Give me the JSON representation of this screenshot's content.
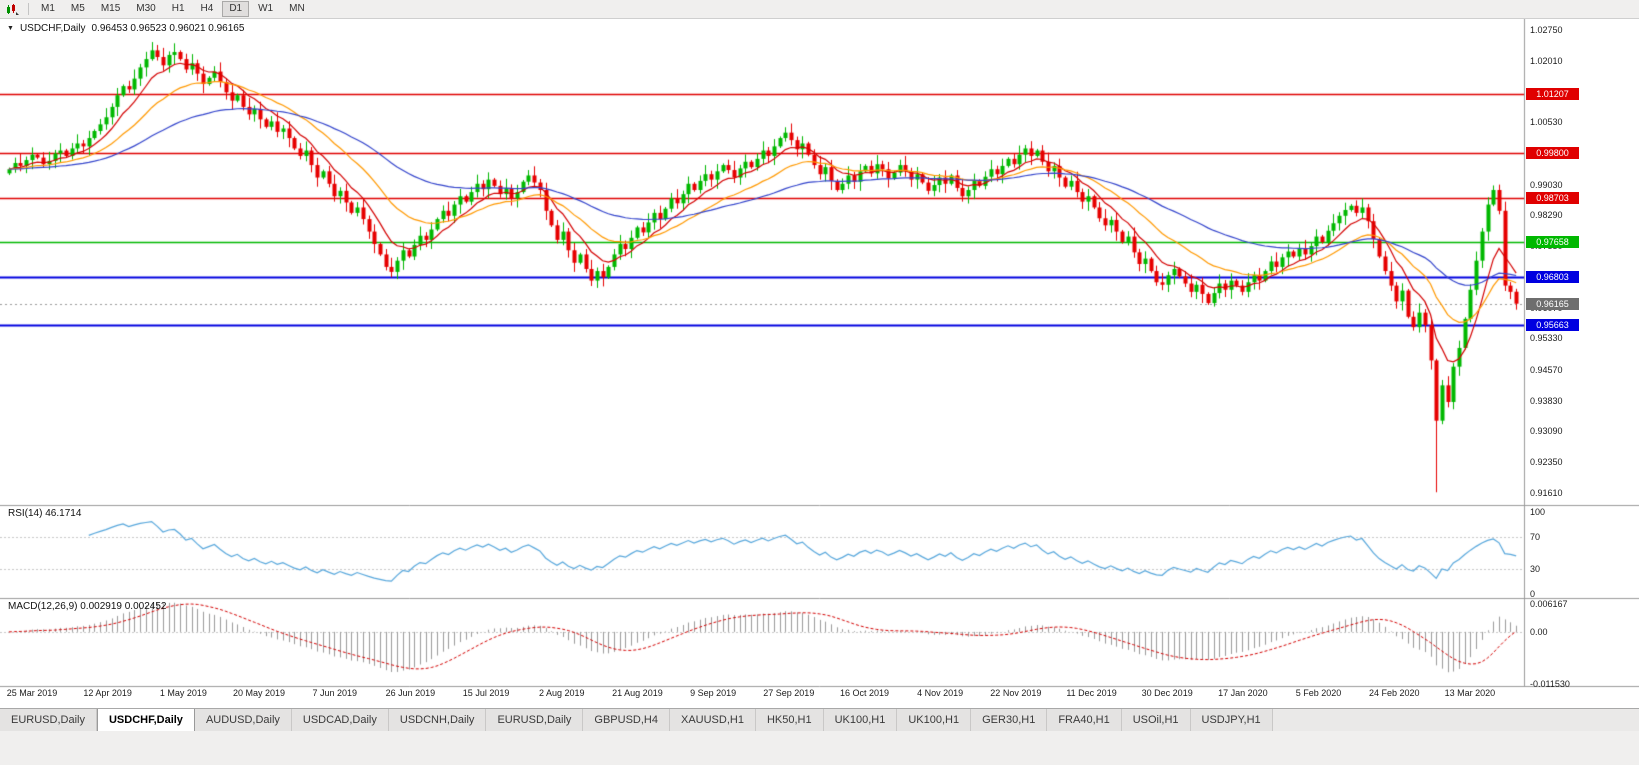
{
  "toolbar": {
    "timeframes": [
      "M1",
      "M5",
      "M15",
      "M30",
      "H1",
      "H4",
      "D1",
      "W1",
      "MN"
    ],
    "active_timeframe": "D1"
  },
  "symbol_header": {
    "collapse_icon": "▼",
    "symbol": "USDCHF,Daily",
    "ohlc": "0.96453 0.96523 0.96021 0.96165"
  },
  "price_axis": {
    "labels": [
      "1.02750",
      "1.02010",
      "1.01270",
      "1.00530",
      "0.99790",
      "0.99030",
      "0.98290",
      "0.97550",
      "0.96810",
      "0.96070",
      "0.95330",
      "0.94570",
      "0.93830",
      "0.93090",
      "0.92350",
      "0.91610"
    ]
  },
  "chart": {
    "levels": [
      {
        "label": "1.01207",
        "value": 1.01207,
        "color": "#e00000",
        "width": 1.5
      },
      {
        "label": "0.99800",
        "value": 0.998,
        "color": "#e00000",
        "width": 1.5
      },
      {
        "label": "0.98703",
        "value": 0.98703,
        "color": "#e00000",
        "width": 1.5
      },
      {
        "label": "0.97658",
        "value": 0.97658,
        "color": "#00b800",
        "width": 1.6
      },
      {
        "label": "0.96803",
        "value": 0.96803,
        "color": "#0000e0",
        "width": 1.8
      },
      {
        "label": "0.95663",
        "value": 0.95663,
        "color": "#0000e0",
        "width": 1.8
      }
    ],
    "current_price": {
      "label": "0.96165",
      "value": 0.96165,
      "color": "#6e6e6e"
    }
  },
  "rsi_panel": {
    "title": "RSI(14) 46.1714",
    "axis_labels": [
      {
        "text": "100",
        "value": 100
      },
      {
        "text": "70",
        "value": 70
      },
      {
        "text": "30",
        "value": 30
      },
      {
        "text": "0",
        "value": 0
      }
    ],
    "guides": [
      70,
      30
    ],
    "line_color": "#57a7dc"
  },
  "macd_panel": {
    "title": "MACD(12,26,9) 0.002919 0.002452",
    "axis_labels": [
      {
        "text": "0.006167",
        "value": 0.006167
      },
      {
        "text": "0.00",
        "value": 0
      },
      {
        "text": "-0.011530",
        "value": -0.01153
      }
    ],
    "histogram_color": "#9a9a9a",
    "signal_color": "#d40000"
  },
  "date_axis": {
    "labels": [
      "25 Mar 2019",
      "12 Apr 2019",
      "1 May 2019",
      "20 May 2019",
      "7 Jun 2019",
      "26 Jun 2019",
      "15 Jul 2019",
      "2 Aug 2019",
      "21 Aug 2019",
      "9 Sep 2019",
      "27 Sep 2019",
      "16 Oct 2019",
      "4 Nov 2019",
      "22 Nov 2019",
      "11 Dec 2019",
      "30 Dec 2019",
      "17 Jan 2020",
      "5 Feb 2020",
      "24 Feb 2020",
      "13 Mar 2020"
    ]
  },
  "tab_bar": {
    "tabs": [
      {
        "label": "EURUSD,Daily",
        "active": false
      },
      {
        "label": "USDCHF,Daily",
        "active": true
      },
      {
        "label": "AUDUSD,Daily",
        "active": false
      },
      {
        "label": "USDCAD,Daily",
        "active": false
      },
      {
        "label": "USDCNH,Daily",
        "active": false
      },
      {
        "label": "EURUSD,Daily",
        "active": false
      },
      {
        "label": "GBPUSD,H4",
        "active": false
      },
      {
        "label": "XAUUSD,H1",
        "active": false
      },
      {
        "label": "HK50,H1",
        "active": false
      },
      {
        "label": "UK100,H1",
        "active": false
      },
      {
        "label": "UK100,H1",
        "active": false
      },
      {
        "label": "GER30,H1",
        "active": false
      },
      {
        "label": "FRA40,H1",
        "active": false
      },
      {
        "label": "USOil,H1",
        "active": false
      },
      {
        "label": "USDJPY,H1",
        "active": false
      }
    ]
  },
  "chart_data": {
    "type": "candlestick",
    "symbol": "USDCHF",
    "timeframe": "Daily",
    "y_range": {
      "top": 1.0275,
      "bottom": 0.9161
    },
    "first_open": 0.993,
    "colors": {
      "bull": "#00b800",
      "bear": "#e60000"
    },
    "moving_averages": [
      {
        "period": 8,
        "color": "#d40000"
      },
      {
        "period": 20,
        "color": "#ff9900"
      },
      {
        "period": 50,
        "color": "#3344cc"
      }
    ],
    "closes": [
      0.994,
      0.9955,
      0.9948,
      0.9962,
      0.9975,
      0.9968,
      0.9952,
      0.996,
      0.9978,
      0.9985,
      0.9972,
      0.999,
      1.0002,
      0.9995,
      1.0015,
      1.0032,
      1.0048,
      1.0065,
      1.009,
      1.0118,
      1.014,
      1.0132,
      1.0158,
      1.0185,
      1.0205,
      1.0226,
      1.021,
      1.019,
      1.0215,
      1.0222,
      1.0205,
      1.018,
      1.0195,
      1.017,
      1.0145,
      1.016,
      1.0175,
      1.015,
      1.0125,
      1.0105,
      1.0118,
      1.009,
      1.0072,
      1.0085,
      1.006,
      1.0042,
      1.0055,
      1.003,
      1.0038,
      1.0015,
      0.999,
      0.9972,
      0.9985,
      0.995,
      0.992,
      0.9935,
      0.9905,
      0.9875,
      0.9888,
      0.986,
      0.9835,
      0.9848,
      0.982,
      0.979,
      0.976,
      0.9735,
      0.9705,
      0.9693,
      0.972,
      0.9745,
      0.973,
      0.9758,
      0.978,
      0.977,
      0.9795,
      0.982,
      0.984,
      0.9828,
      0.9855,
      0.9875,
      0.9862,
      0.9885,
      0.9905,
      0.9892,
      0.9915,
      0.99,
      0.988,
      0.9895,
      0.987,
      0.9885,
      0.991,
      0.9925,
      0.9908,
      0.989,
      0.984,
      0.9805,
      0.977,
      0.979,
      0.9745,
      0.9715,
      0.9735,
      0.97,
      0.9672,
      0.9695,
      0.968,
      0.9705,
      0.9735,
      0.976,
      0.9748,
      0.9775,
      0.98,
      0.9788,
      0.9812,
      0.9835,
      0.982,
      0.9845,
      0.987,
      0.9858,
      0.988,
      0.9905,
      0.989,
      0.9912,
      0.9928,
      0.9915,
      0.9935,
      0.995,
      0.9938,
      0.992,
      0.9942,
      0.9958,
      0.9945,
      0.9965,
      0.9985,
      0.9972,
      0.9995,
      1.0015,
      1.0028,
      1.001,
      0.9988,
      1.0002,
      0.9975,
      0.995,
      0.9928,
      0.9945,
      0.9912,
      0.989,
      0.9905,
      0.9925,
      0.991,
      0.9935,
      0.9948,
      0.993,
      0.9952,
      0.994,
      0.9918,
      0.9932,
      0.995,
      0.9935,
      0.9915,
      0.9928,
      0.9908,
      0.9888,
      0.9902,
      0.992,
      0.9905,
      0.9925,
      0.9895,
      0.9875,
      0.989,
      0.9912,
      0.99,
      0.9922,
      0.994,
      0.9928,
      0.9948,
      0.9965,
      0.9952,
      0.9975,
      0.999,
      0.9972,
      0.9985,
      0.9958,
      0.9935,
      0.9948,
      0.992,
      0.9898,
      0.9912,
      0.9885,
      0.9862,
      0.9875,
      0.9848,
      0.9822,
      0.9805,
      0.9818,
      0.979,
      0.9765,
      0.9778,
      0.974,
      0.9712,
      0.9725,
      0.9695,
      0.9668,
      0.9662,
      0.9685,
      0.97,
      0.9682,
      0.9665,
      0.9645,
      0.9662,
      0.964,
      0.9618,
      0.9642,
      0.9665,
      0.965,
      0.9672,
      0.966,
      0.9645,
      0.9668,
      0.9685,
      0.9672,
      0.9695,
      0.9718,
      0.9705,
      0.9728,
      0.9742,
      0.973,
      0.9748,
      0.9735,
      0.9755,
      0.9778,
      0.9765,
      0.9792,
      0.981,
      0.9828,
      0.9842,
      0.9852,
      0.9835,
      0.9848,
      0.9815,
      0.9772,
      0.973,
      0.9695,
      0.966,
      0.9622,
      0.9648,
      0.9585,
      0.956,
      0.9595,
      0.9565,
      0.948,
      0.9335,
      0.942,
      0.938,
      0.9465,
      0.951,
      0.958,
      0.965,
      0.972,
      0.979,
      0.9855,
      0.989,
      0.984,
      0.966,
      0.9645,
      0.96165
    ],
    "overrides": {
      "25": {
        "high": 1.0246
      },
      "29": {
        "high": 1.0243
      },
      "102": {
        "low": 0.9659
      },
      "210": {
        "low": 0.96135
      },
      "250": {
        "low": 0.91628
      },
      "260": {
        "high": 0.9901
      },
      "264": {
        "open": 0.96453,
        "high": 0.96523,
        "low": 0.96021,
        "close": 0.96165
      }
    }
  }
}
